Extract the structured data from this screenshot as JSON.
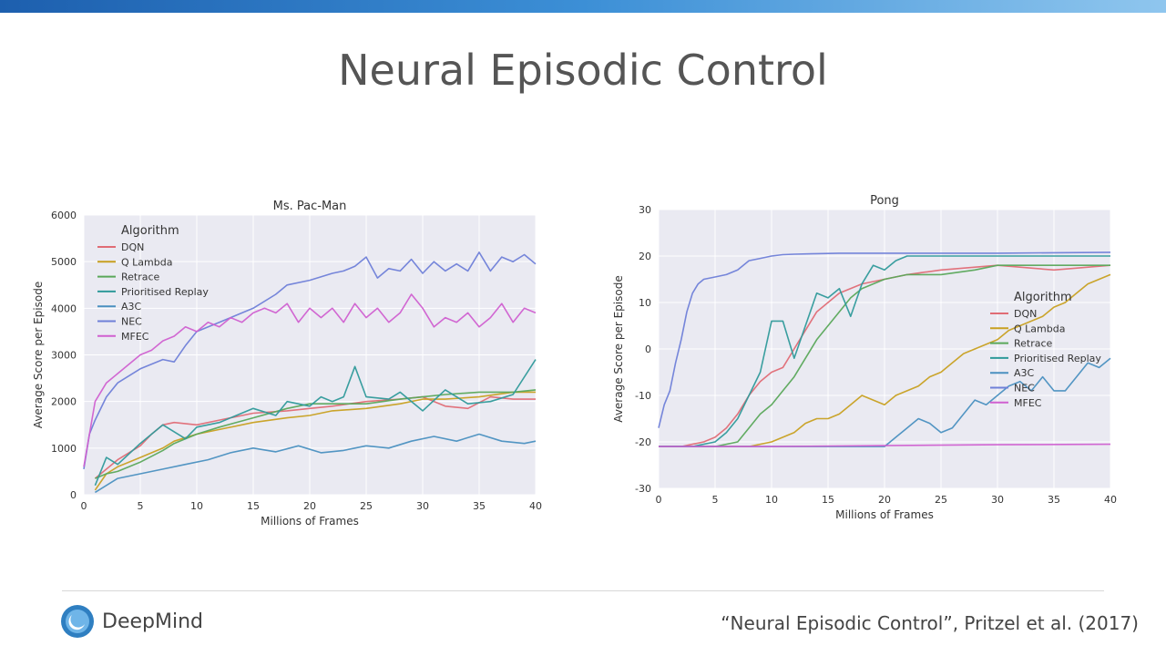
{
  "slide": {
    "title": "Neural Episodic Control",
    "brand": "DeepMind",
    "citation": "“Neural Episodic Control”, Pritzel et al. (2017)",
    "colors": {
      "top_bar": "#1d5fae",
      "plot_bg": "#eaeaf2"
    }
  },
  "chart_data": [
    {
      "type": "line",
      "title": "Ms. Pac-Man",
      "xlabel": "Millions of Frames",
      "ylabel": "Average Score per Episode",
      "xlim": [
        0,
        40
      ],
      "ylim": [
        0,
        6000
      ],
      "xticks": [
        0,
        5,
        10,
        15,
        20,
        25,
        30,
        35,
        40
      ],
      "yticks": [
        0,
        1000,
        2000,
        3000,
        4000,
        5000,
        6000
      ],
      "grid": true,
      "legend_title": "Algorithm",
      "legend_position": "top-left",
      "series": [
        {
          "name": "DQN",
          "color": "#e06c75",
          "x": [
            1,
            2,
            3,
            5,
            6,
            7,
            8,
            10,
            12,
            15,
            18,
            20,
            22,
            25,
            28,
            30,
            32,
            34,
            36,
            38,
            40
          ],
          "y": [
            350,
            550,
            750,
            1050,
            1300,
            1500,
            1550,
            1500,
            1600,
            1750,
            1800,
            1850,
            1900,
            2000,
            2050,
            2100,
            1900,
            1850,
            2100,
            2050,
            2050
          ]
        },
        {
          "name": "Q Lambda",
          "color": "#c8a020",
          "x": [
            1,
            2,
            3,
            5,
            7,
            8,
            10,
            12,
            15,
            18,
            20,
            22,
            25,
            28,
            30,
            32,
            35,
            38,
            40
          ],
          "y": [
            100,
            450,
            600,
            800,
            1000,
            1150,
            1300,
            1400,
            1550,
            1650,
            1700,
            1800,
            1850,
            1950,
            2050,
            2050,
            2100,
            2200,
            2200
          ]
        },
        {
          "name": "Retrace",
          "color": "#5aa85a",
          "x": [
            1,
            2,
            3,
            5,
            7,
            8,
            10,
            12,
            15,
            18,
            20,
            22,
            25,
            28,
            30,
            32,
            35,
            38,
            40
          ],
          "y": [
            350,
            450,
            500,
            700,
            950,
            1100,
            1300,
            1450,
            1650,
            1850,
            1950,
            1950,
            1950,
            2050,
            2100,
            2150,
            2200,
            2200,
            2250
          ]
        },
        {
          "name": "Prioritised Replay",
          "color": "#2f9a9a",
          "x": [
            1,
            2,
            3,
            5,
            7,
            9,
            10,
            12,
            15,
            17,
            18,
            20,
            21,
            22,
            23,
            24,
            25,
            27,
            28,
            30,
            32,
            34,
            36,
            38,
            40
          ],
          "y": [
            200,
            800,
            650,
            1100,
            1500,
            1200,
            1450,
            1550,
            1850,
            1700,
            2000,
            1900,
            2100,
            2000,
            2100,
            2750,
            2100,
            2050,
            2200,
            1800,
            2250,
            1950,
            2000,
            2150,
            2900
          ]
        },
        {
          "name": "A3C",
          "color": "#4a90c0",
          "x": [
            1,
            3,
            5,
            7,
            9,
            11,
            13,
            15,
            17,
            19,
            21,
            23,
            25,
            27,
            29,
            31,
            33,
            35,
            37,
            39,
            40
          ],
          "y": [
            50,
            350,
            450,
            550,
            650,
            750,
            900,
            1000,
            920,
            1050,
            900,
            950,
            1050,
            1000,
            1150,
            1250,
            1150,
            1300,
            1150,
            1100,
            1150
          ]
        },
        {
          "name": "NEC",
          "color": "#6f80d8",
          "x": [
            0,
            0.5,
            1,
            2,
            3,
            5,
            7,
            8,
            9,
            10,
            12,
            15,
            17,
            18,
            20,
            22,
            23,
            24,
            25,
            26,
            27,
            28,
            29,
            30,
            31,
            32,
            33,
            34,
            35,
            36,
            37,
            38,
            39,
            40
          ],
          "y": [
            550,
            1300,
            1600,
            2100,
            2400,
            2700,
            2900,
            2850,
            3200,
            3500,
            3700,
            4000,
            4300,
            4500,
            4600,
            4750,
            4800,
            4900,
            5100,
            4650,
            4850,
            4800,
            5050,
            4750,
            5000,
            4800,
            4950,
            4800,
            5200,
            4800,
            5100,
            5000,
            5150,
            4950
          ]
        },
        {
          "name": "MFEC",
          "color": "#d060d0",
          "x": [
            0,
            1,
            2,
            3,
            4,
            5,
            6,
            7,
            8,
            9,
            10,
            11,
            12,
            13,
            14,
            15,
            16,
            17,
            18,
            19,
            20,
            21,
            22,
            23,
            24,
            25,
            26,
            27,
            28,
            29,
            30,
            31,
            32,
            33,
            34,
            35,
            36,
            37,
            38,
            39,
            40
          ],
          "y": [
            600,
            2000,
            2400,
            2600,
            2800,
            3000,
            3100,
            3300,
            3400,
            3600,
            3500,
            3700,
            3600,
            3800,
            3700,
            3900,
            4000,
            3900,
            4100,
            3700,
            4000,
            3800,
            4000,
            3700,
            4100,
            3800,
            4000,
            3700,
            3900,
            4300,
            4000,
            3600,
            3800,
            3700,
            3900,
            3600,
            3800,
            4100,
            3700,
            4000,
            3900
          ]
        }
      ]
    },
    {
      "type": "line",
      "title": "Pong",
      "xlabel": "Millions of Frames",
      "ylabel": "Average Score per Episode",
      "xlim": [
        0,
        40
      ],
      "ylim": [
        -30,
        30
      ],
      "xticks": [
        0,
        5,
        10,
        15,
        20,
        25,
        30,
        35,
        40
      ],
      "yticks": [
        -30,
        -20,
        -10,
        0,
        10,
        20,
        30
      ],
      "grid": true,
      "legend_title": "Algorithm",
      "legend_position": "center-right",
      "series": [
        {
          "name": "DQN",
          "color": "#e06c75",
          "x": [
            0,
            2,
            4,
            5,
            6,
            7,
            8,
            9,
            10,
            11,
            12,
            13,
            14,
            15,
            16,
            18,
            20,
            22,
            25,
            30,
            35,
            40
          ],
          "y": [
            -21,
            -21,
            -20,
            -19,
            -17,
            -14,
            -10,
            -7,
            -5,
            -4,
            0,
            4,
            8,
            10,
            12,
            14,
            15,
            16,
            17,
            18,
            17,
            18
          ]
        },
        {
          "name": "Q Lambda",
          "color": "#c8a020",
          "x": [
            0,
            5,
            8,
            10,
            12,
            13,
            14,
            15,
            16,
            17,
            18,
            19,
            20,
            21,
            22,
            23,
            24,
            25,
            26,
            27,
            28,
            29,
            30,
            31,
            32,
            33,
            34,
            35,
            36,
            37,
            38,
            39,
            40
          ],
          "y": [
            -21,
            -21,
            -21,
            -20,
            -18,
            -16,
            -15,
            -15,
            -14,
            -12,
            -10,
            -11,
            -12,
            -10,
            -9,
            -8,
            -6,
            -5,
            -3,
            -1,
            0,
            1,
            2,
            4,
            5,
            6,
            7,
            9,
            10,
            12,
            14,
            15,
            16
          ]
        },
        {
          "name": "Retrace",
          "color": "#5aa85a",
          "x": [
            0,
            5,
            7,
            8,
            9,
            10,
            11,
            12,
            13,
            14,
            15,
            16,
            17,
            18,
            19,
            20,
            22,
            25,
            28,
            30,
            35,
            40
          ],
          "y": [
            -21,
            -21,
            -20,
            -17,
            -14,
            -12,
            -9,
            -6,
            -2,
            2,
            5,
            8,
            11,
            13,
            14,
            15,
            16,
            16,
            17,
            18,
            18,
            18
          ]
        },
        {
          "name": "Prioritised Replay",
          "color": "#2f9a9a",
          "x": [
            0,
            3,
            5,
            6,
            7,
            8,
            9,
            10,
            11,
            12,
            13,
            14,
            15,
            16,
            17,
            18,
            19,
            20,
            21,
            22,
            23,
            24,
            25,
            30,
            35,
            40
          ],
          "y": [
            -21,
            -21,
            -20,
            -18,
            -15,
            -10,
            -5,
            6,
            6,
            -2,
            5,
            12,
            11,
            13,
            7,
            14,
            18,
            17,
            19,
            20,
            20,
            20,
            20,
            20,
            20,
            20
          ]
        },
        {
          "name": "A3C",
          "color": "#4a90c0",
          "x": [
            0,
            5,
            10,
            15,
            18,
            20,
            21,
            22,
            23,
            24,
            25,
            26,
            27,
            28,
            29,
            30,
            31,
            32,
            33,
            34,
            35,
            36,
            37,
            38,
            39,
            40
          ],
          "y": [
            -21,
            -21,
            -21,
            -21,
            -21,
            -21,
            -19,
            -17,
            -15,
            -16,
            -18,
            -17,
            -14,
            -11,
            -12,
            -10,
            -8,
            -7,
            -9,
            -6,
            -9,
            -9,
            -6,
            -3,
            -4,
            -2
          ]
        },
        {
          "name": "NEC",
          "color": "#6f80d8",
          "x": [
            0,
            0.5,
            1,
            1.5,
            2,
            2.5,
            3,
            3.5,
            4,
            5,
            6,
            7,
            8,
            9,
            10,
            11,
            12,
            14,
            16,
            20,
            25,
            30,
            35,
            40
          ],
          "y": [
            -17,
            -12,
            -9,
            -3,
            2,
            8,
            12,
            14,
            15,
            15.5,
            16,
            17,
            19,
            19.5,
            20,
            20.3,
            20.4,
            20.5,
            20.6,
            20.6,
            20.6,
            20.6,
            20.7,
            20.8
          ]
        },
        {
          "name": "MFEC",
          "color": "#d060d0",
          "x": [
            0,
            10,
            20,
            30,
            40
          ],
          "y": [
            -21,
            -21,
            -20.8,
            -20.6,
            -20.5
          ]
        }
      ]
    }
  ]
}
